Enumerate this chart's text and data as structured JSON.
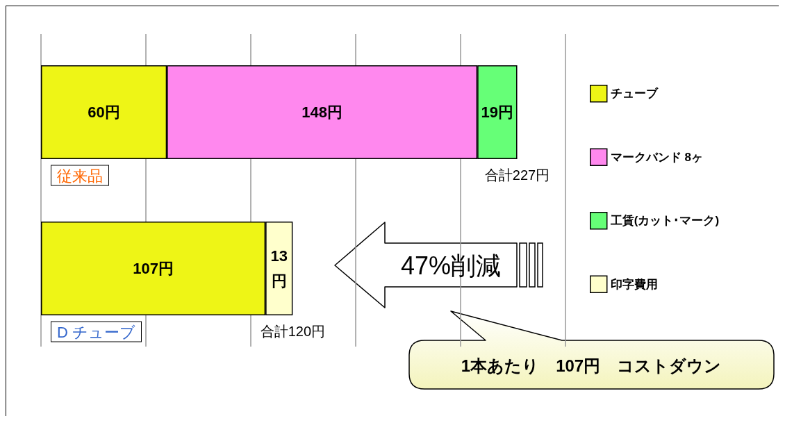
{
  "chart_data": {
    "type": "bar",
    "orientation": "horizontal",
    "stacked": true,
    "categories": [
      "従来品",
      "D チューブ"
    ],
    "series": [
      {
        "name": "チューブ",
        "color": "#eef516",
        "values": [
          60,
          107
        ],
        "value_labels": [
          "60円",
          "107円"
        ]
      },
      {
        "name": "マークバンド 8ヶ",
        "color": "#ff88ee",
        "values": [
          148,
          null
        ],
        "value_labels": [
          "148円",
          null
        ]
      },
      {
        "name": "工賃(カット･マーク)",
        "color": "#66ff77",
        "values": [
          19,
          null
        ],
        "value_labels": [
          "19円",
          null
        ]
      },
      {
        "name": "印字費用",
        "color": "#ffffcc",
        "values": [
          null,
          13
        ],
        "value_labels": [
          null,
          "13円"
        ]
      }
    ],
    "xlim": [
      0,
      250
    ],
    "tick_labels": false,
    "grid": "x",
    "legend": "right",
    "totals": [
      "合計227円",
      "合計120円"
    ],
    "annotations": [
      "47%削減",
      "1本あたり　107円　コストダウン"
    ]
  }
}
